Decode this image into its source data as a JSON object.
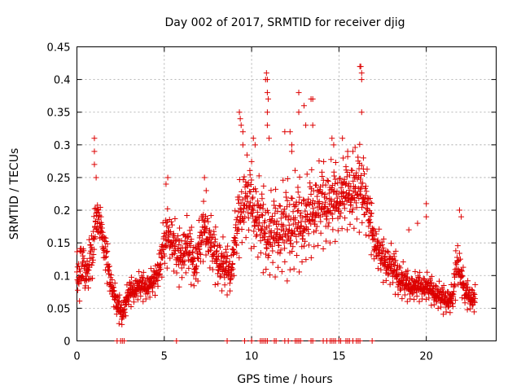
{
  "chart_data": {
    "type": "scatter",
    "title": "Day 002 of 2017, SRMTID for receiver djig",
    "xlabel": "GPS time / hours",
    "ylabel": "SRMTID / TECUs",
    "xlim": [
      0,
      24
    ],
    "ylim": [
      0,
      0.45
    ],
    "xticks": [
      0,
      5,
      10,
      15,
      20
    ],
    "xtick_labels": [
      "0",
      "5",
      "10",
      "15",
      "20"
    ],
    "yticks": [
      0,
      0.05,
      0.1,
      0.15,
      0.2,
      0.25,
      0.3,
      0.35,
      0.4,
      0.45
    ],
    "ytick_labels": [
      "0",
      "0.05",
      "0.1",
      "0.15",
      "0.2",
      "0.25",
      "0.3",
      "0.35",
      "0.4",
      "0.45"
    ],
    "grid": true,
    "marker": "+",
    "color": "#dd0000",
    "series": [
      {
        "name": "SRMTID",
        "profile_x": [
          0,
          0.2,
          0.5,
          0.9,
          1.1,
          1.4,
          1.7,
          2.0,
          2.3,
          2.6,
          3.0,
          3.5,
          4.0,
          4.5,
          5.0,
          5.3,
          5.8,
          6.3,
          6.8,
          7.3,
          7.8,
          8.3,
          8.8,
          9.2,
          9.6,
          10.0,
          10.5,
          11.0,
          11.5,
          12.0,
          12.5,
          13.0,
          13.5,
          14.0,
          14.5,
          15.0,
          15.5,
          16.0,
          16.3,
          16.6,
          17.0,
          17.5,
          18.0,
          18.5,
          19.0,
          19.5,
          20.0,
          20.5,
          21.0,
          21.5,
          21.8,
          22.2,
          22.8
        ],
        "profile_median": [
          0.1,
          0.12,
          0.1,
          0.13,
          0.19,
          0.17,
          0.12,
          0.08,
          0.05,
          0.04,
          0.07,
          0.08,
          0.08,
          0.09,
          0.14,
          0.16,
          0.12,
          0.14,
          0.11,
          0.17,
          0.13,
          0.11,
          0.1,
          0.17,
          0.21,
          0.2,
          0.17,
          0.15,
          0.16,
          0.16,
          0.17,
          0.17,
          0.19,
          0.2,
          0.2,
          0.21,
          0.22,
          0.22,
          0.23,
          0.2,
          0.15,
          0.12,
          0.11,
          0.09,
          0.08,
          0.08,
          0.08,
          0.07,
          0.06,
          0.06,
          0.12,
          0.07,
          0.06
        ],
        "profile_spread": [
          0.03,
          0.04,
          0.03,
          0.04,
          0.03,
          0.03,
          0.03,
          0.02,
          0.02,
          0.02,
          0.02,
          0.02,
          0.02,
          0.02,
          0.04,
          0.04,
          0.04,
          0.04,
          0.04,
          0.04,
          0.04,
          0.04,
          0.03,
          0.05,
          0.06,
          0.06,
          0.06,
          0.06,
          0.06,
          0.07,
          0.07,
          0.06,
          0.06,
          0.06,
          0.06,
          0.05,
          0.05,
          0.06,
          0.06,
          0.05,
          0.03,
          0.03,
          0.03,
          0.03,
          0.02,
          0.02,
          0.02,
          0.02,
          0.02,
          0.02,
          0.04,
          0.02,
          0.02
        ],
        "spikes": [
          [
            1.0,
            0.31
          ],
          [
            1.0,
            0.29
          ],
          [
            1.0,
            0.27
          ],
          [
            1.1,
            0.25
          ],
          [
            5.1,
            0.24
          ],
          [
            5.2,
            0.25
          ],
          [
            7.3,
            0.25
          ],
          [
            7.4,
            0.23
          ],
          [
            9.3,
            0.35
          ],
          [
            9.35,
            0.34
          ],
          [
            9.4,
            0.33
          ],
          [
            9.5,
            0.32
          ],
          [
            9.5,
            0.3
          ],
          [
            10.1,
            0.31
          ],
          [
            10.2,
            0.3
          ],
          [
            10.8,
            0.4
          ],
          [
            10.85,
            0.41
          ],
          [
            10.9,
            0.4
          ],
          [
            10.9,
            0.38
          ],
          [
            10.95,
            0.37
          ],
          [
            10.9,
            0.35
          ],
          [
            10.9,
            0.33
          ],
          [
            11.0,
            0.31
          ],
          [
            11.9,
            0.32
          ],
          [
            12.2,
            0.32
          ],
          [
            12.3,
            0.3
          ],
          [
            12.3,
            0.29
          ],
          [
            12.7,
            0.38
          ],
          [
            12.7,
            0.35
          ],
          [
            13.0,
            0.36
          ],
          [
            13.1,
            0.33
          ],
          [
            13.4,
            0.37
          ],
          [
            13.5,
            0.37
          ],
          [
            13.5,
            0.33
          ],
          [
            14.6,
            0.31
          ],
          [
            14.7,
            0.3
          ],
          [
            15.2,
            0.31
          ],
          [
            15.5,
            0.29
          ],
          [
            15.8,
            0.29
          ],
          [
            16.2,
            0.42
          ],
          [
            16.25,
            0.42
          ],
          [
            16.3,
            0.41
          ],
          [
            16.3,
            0.4
          ],
          [
            16.3,
            0.35
          ],
          [
            16.4,
            0.28
          ],
          [
            19.0,
            0.17
          ],
          [
            19.5,
            0.18
          ],
          [
            20.0,
            0.21
          ],
          [
            20.0,
            0.19
          ],
          [
            21.9,
            0.2
          ],
          [
            22.0,
            0.19
          ]
        ],
        "zero_x": [
          2.3,
          2.5,
          2.6,
          2.7,
          5.7,
          8.6,
          9.6,
          10.0,
          10.5,
          10.6,
          10.7,
          10.8,
          10.9,
          11.3,
          11.4,
          11.9,
          12.1,
          12.5,
          12.6,
          12.7,
          12.8,
          13.4,
          13.5,
          14.1,
          14.3,
          14.5,
          14.6,
          14.7,
          14.8,
          15.0,
          15.1,
          15.4,
          15.5,
          15.6,
          15.8,
          16.0,
          16.1,
          16.2,
          16.9
        ]
      }
    ]
  }
}
